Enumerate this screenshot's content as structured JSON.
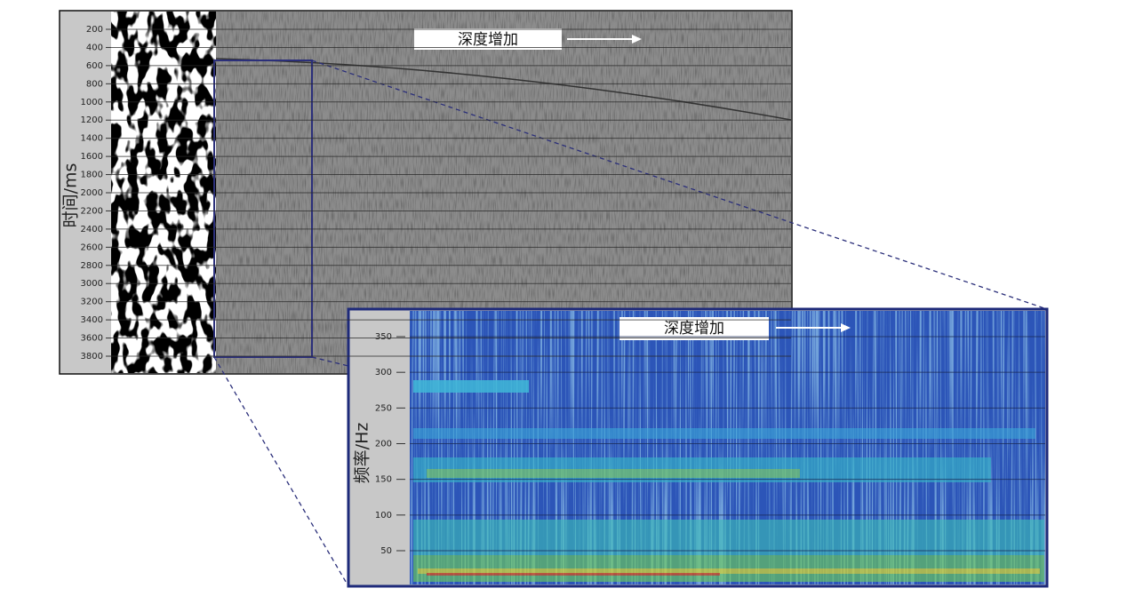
{
  "panels": [
    {
      "y_label": "时间/ms",
      "y_ticks": [
        200,
        400,
        600,
        800,
        1000,
        1200,
        1400,
        1600,
        1800,
        2000,
        2200,
        2400,
        2600,
        2800,
        3000,
        3200,
        3400,
        3600,
        3800
      ],
      "annotation": "深度增加"
    },
    {
      "y_label": "频率/Hz",
      "y_ticks": [
        50,
        100,
        150,
        200,
        250,
        300,
        350
      ],
      "annotation": "深度增加"
    }
  ]
}
